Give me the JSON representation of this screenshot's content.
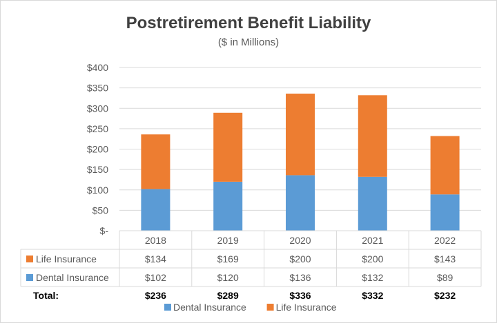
{
  "chart_data": {
    "type": "bar",
    "stacked": true,
    "title": "Postretirement Benefit Liability",
    "subtitle": "($ in Millions)",
    "categories": [
      "2018",
      "2019",
      "2020",
      "2021",
      "2022"
    ],
    "series": [
      {
        "name": "Dental Insurance",
        "values": [
          102,
          120,
          136,
          132,
          89
        ],
        "color": "#5b9bd5"
      },
      {
        "name": "Life Insurance",
        "values": [
          134,
          169,
          200,
          200,
          143
        ],
        "color": "#ed7d31"
      }
    ],
    "ylim": [
      0,
      400
    ],
    "yticks": [
      0,
      50,
      100,
      150,
      200,
      250,
      300,
      350,
      400
    ],
    "ytick_labels": [
      "$-",
      "$50",
      "$100",
      "$150",
      "$200",
      "$250",
      "$300",
      "$350",
      "$400"
    ],
    "grid": true,
    "data_table": {
      "rows": [
        {
          "label": "Life Insurance",
          "values": [
            "$134",
            "$169",
            "$200",
            "$200",
            "$143"
          ],
          "color": "#ed7d31"
        },
        {
          "label": "Dental Insurance",
          "values": [
            "$102",
            "$120",
            "$136",
            "$132",
            "$89"
          ],
          "color": "#5b9bd5"
        }
      ],
      "total_label": "Total:",
      "totals": [
        "$236",
        "$289",
        "$336",
        "$332",
        "$232"
      ]
    },
    "legend_position": "bottom",
    "legend": [
      "Dental Insurance",
      "Life Insurance"
    ]
  }
}
